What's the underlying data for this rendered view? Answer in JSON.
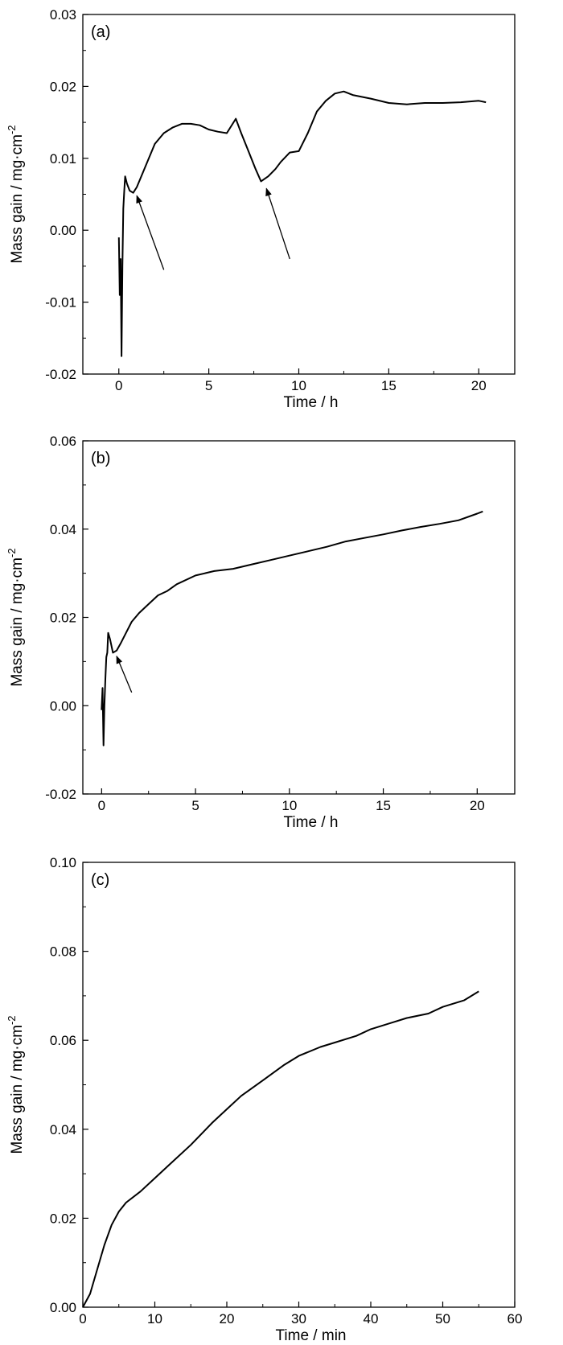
{
  "colors": {
    "line": "#000000",
    "axis": "#000000",
    "background": "#ffffff"
  },
  "chart_data": [
    {
      "type": "line",
      "panel_label": "(a)",
      "xlabel": "Time / h",
      "ylabel_main": "Mass gain / mg·cm",
      "ylabel_sup": "-2",
      "xlim": [
        -2,
        22
      ],
      "ylim": [
        -0.02,
        0.03
      ],
      "xticks": [
        0,
        5,
        10,
        15,
        20
      ],
      "xtick_labels": [
        "0",
        "5",
        "10",
        "15",
        "20"
      ],
      "yticks": [
        -0.02,
        -0.01,
        0.0,
        0.01,
        0.02,
        0.03
      ],
      "ytick_labels": [
        "-0.02",
        "-0.01",
        "0.00",
        "0.01",
        "0.02",
        "0.03"
      ],
      "series": [
        {
          "name": "mass gain",
          "x": [
            0.0,
            0.05,
            0.1,
            0.15,
            0.2,
            0.25,
            0.3,
            0.35,
            0.45,
            0.6,
            0.8,
            1.0,
            1.5,
            2.0,
            2.5,
            3.0,
            3.5,
            4.0,
            4.5,
            5.0,
            5.5,
            6.0,
            6.5,
            6.8,
            7.2,
            7.6,
            7.9,
            8.3,
            8.7,
            9.0,
            9.5,
            10.0,
            10.5,
            11.0,
            11.5,
            12.0,
            12.5,
            13.0,
            14.0,
            15.0,
            16.0,
            17.0,
            18.0,
            19.0,
            20.0,
            20.4
          ],
          "y": [
            -0.001,
            -0.009,
            -0.004,
            -0.0175,
            -0.005,
            0.003,
            0.0055,
            0.0075,
            0.0065,
            0.0055,
            0.0052,
            0.006,
            0.009,
            0.012,
            0.0135,
            0.0143,
            0.0148,
            0.0148,
            0.0146,
            0.014,
            0.0137,
            0.0135,
            0.0155,
            0.0135,
            0.011,
            0.0085,
            0.0068,
            0.0075,
            0.0085,
            0.0095,
            0.0108,
            0.011,
            0.0135,
            0.0165,
            0.018,
            0.019,
            0.0193,
            0.0188,
            0.0183,
            0.0177,
            0.0175,
            0.0177,
            0.0177,
            0.0178,
            0.018,
            0.0178
          ]
        }
      ],
      "annotations": [
        {
          "type": "arrow",
          "from": [
            2.5,
            -0.0055
          ],
          "to": [
            1.0,
            0.0048
          ]
        },
        {
          "type": "arrow",
          "from": [
            9.5,
            -0.004
          ],
          "to": [
            8.2,
            0.0058
          ]
        }
      ]
    },
    {
      "type": "line",
      "panel_label": "(b)",
      "xlabel": "Time / h",
      "ylabel_main": "Mass gain / mg·cm",
      "ylabel_sup": "-2",
      "xlim": [
        -1,
        22
      ],
      "ylim": [
        -0.02,
        0.06
      ],
      "xticks": [
        0,
        5,
        10,
        15,
        20
      ],
      "xtick_labels": [
        "0",
        "5",
        "10",
        "15",
        "20"
      ],
      "yticks": [
        -0.02,
        0.0,
        0.02,
        0.04,
        0.06
      ],
      "ytick_labels": [
        "-0.02",
        "0.00",
        "0.02",
        "0.04",
        "0.06"
      ],
      "series": [
        {
          "name": "mass gain",
          "x": [
            0.0,
            0.05,
            0.1,
            0.15,
            0.2,
            0.25,
            0.3,
            0.35,
            0.45,
            0.6,
            0.8,
            1.0,
            1.3,
            1.6,
            2.0,
            2.5,
            3.0,
            3.5,
            4.0,
            5.0,
            6.0,
            7.0,
            8.0,
            9.0,
            10.0,
            11.0,
            12.0,
            13.0,
            14.0,
            15.0,
            16.0,
            17.0,
            18.0,
            19.0,
            20.0,
            20.3
          ],
          "y": [
            -0.001,
            0.004,
            -0.009,
            0.0,
            0.006,
            0.011,
            0.012,
            0.0165,
            0.015,
            0.012,
            0.0125,
            0.014,
            0.0165,
            0.019,
            0.021,
            0.023,
            0.025,
            0.026,
            0.0275,
            0.0295,
            0.0305,
            0.031,
            0.032,
            0.033,
            0.034,
            0.035,
            0.036,
            0.0372,
            0.038,
            0.0388,
            0.0397,
            0.0405,
            0.0412,
            0.042,
            0.0435,
            0.044
          ]
        }
      ],
      "annotations": [
        {
          "type": "arrow",
          "from": [
            1.6,
            0.003
          ],
          "to": [
            0.8,
            0.0112
          ]
        }
      ]
    },
    {
      "type": "line",
      "panel_label": "(c)",
      "xlabel": "Time / min",
      "ylabel_main": "Mass gain / mg·cm",
      "ylabel_sup": "-2",
      "xlim": [
        0,
        60
      ],
      "ylim": [
        0.0,
        0.1
      ],
      "xticks": [
        0,
        10,
        20,
        30,
        40,
        50,
        60
      ],
      "xtick_labels": [
        "0",
        "10",
        "20",
        "30",
        "40",
        "50",
        "60"
      ],
      "yticks": [
        0.0,
        0.02,
        0.04,
        0.06,
        0.08,
        0.1
      ],
      "ytick_labels": [
        "0.00",
        "0.02",
        "0.04",
        "0.06",
        "0.08",
        "0.10"
      ],
      "series": [
        {
          "name": "mass gain",
          "x": [
            0,
            1,
            2,
            3,
            4,
            5,
            6,
            8,
            10,
            12,
            15,
            18,
            20,
            22,
            25,
            28,
            30,
            33,
            35,
            38,
            40,
            43,
            45,
            48,
            50,
            53,
            55
          ],
          "y": [
            0.0,
            0.003,
            0.0085,
            0.014,
            0.0185,
            0.0215,
            0.0235,
            0.026,
            0.029,
            0.032,
            0.0365,
            0.0415,
            0.0445,
            0.0475,
            0.051,
            0.0545,
            0.0565,
            0.0585,
            0.0595,
            0.061,
            0.0625,
            0.064,
            0.065,
            0.066,
            0.0675,
            0.069,
            0.071
          ]
        }
      ]
    }
  ]
}
